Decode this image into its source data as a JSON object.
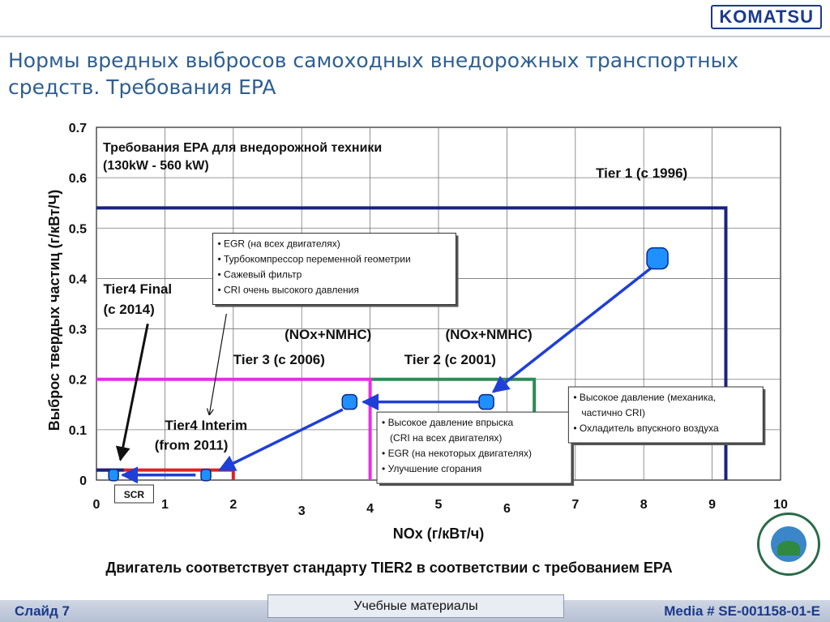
{
  "logo": {
    "text": "KOMATSU"
  },
  "title": "Нормы вредных выбросов самоходных внедорожных транспортных средств. Требования EPA",
  "chart_data": {
    "type": "line",
    "title": "Требования EPA для внедорожной техники",
    "subtitle": "(130kW - 560 kW)",
    "xlabel": "NOx (г/кВт/ч)",
    "ylabel": "Выброс твердых частиц (г/кВт/Ч)",
    "xlim": [
      0,
      10
    ],
    "ylim": [
      0,
      0.7
    ],
    "grid": true,
    "x_ticks": [
      "0",
      "1",
      "2",
      "3",
      "4",
      "5",
      "6",
      "7",
      "8",
      "9",
      "10"
    ],
    "y_ticks": [
      "0",
      "0.1",
      "0.2",
      "0.3",
      "0.4",
      "0.5",
      "0.6",
      "0.7"
    ],
    "series": [
      {
        "name": "Tier 1 (с 1996)",
        "color": "#1a237e",
        "points": [
          [
            0,
            0.54
          ],
          [
            9.2,
            0.54
          ],
          [
            9.2,
            0
          ]
        ]
      },
      {
        "name": "Tier 2 (с 2001)",
        "color": "#2e8b57",
        "points": [
          [
            4,
            0.2
          ],
          [
            6.4,
            0.2
          ],
          [
            6.4,
            0
          ]
        ]
      },
      {
        "name": "Tier 3 (с 2006)",
        "color": "#e62ee6",
        "points": [
          [
            0,
            0.2
          ],
          [
            4,
            0.2
          ],
          [
            4,
            0
          ]
        ]
      },
      {
        "name": "Tier4 Interim",
        "color": "#e02020",
        "points": [
          [
            0,
            0.02
          ],
          [
            2,
            0.02
          ],
          [
            2,
            0
          ]
        ]
      },
      {
        "name": "Tier4 Final",
        "color": "#1a237e",
        "points": [
          [
            0,
            0.02
          ],
          [
            0.4,
            0.02
          ]
        ]
      }
    ],
    "series_labels": [
      {
        "text": "Tier 1 (с 1996)",
        "x": 7.3,
        "y": 0.6
      },
      {
        "text": "(NOx+NMHC)",
        "x": 2.75,
        "y": 0.28
      },
      {
        "text": "Tier 3 (с 2006)",
        "x": 2.0,
        "y": 0.23
      },
      {
        "text": "(NOx+NMHC)",
        "x": 5.1,
        "y": 0.28
      },
      {
        "text": "Tier 2 (с 2001)",
        "x": 4.5,
        "y": 0.23
      },
      {
        "text": "Tier4 Final",
        "x": 0.1,
        "y": 0.37
      },
      {
        "text": "(с 2014)",
        "x": 0.1,
        "y": 0.33
      },
      {
        "text": "Tier4 Interim",
        "x": 1.0,
        "y": 0.1
      },
      {
        "text": "(from 2011)",
        "x": 0.85,
        "y": 0.06
      }
    ],
    "engine_points": [
      {
        "x": 8.2,
        "y": 0.44
      },
      {
        "x": 5.7,
        "y": 0.155
      },
      {
        "x": 3.7,
        "y": 0.155
      },
      {
        "x": 1.6,
        "y": 0.01
      },
      {
        "x": 0.25,
        "y": 0.01
      }
    ],
    "path_arrows": [
      {
        "from": [
          8.1,
          0.42
        ],
        "to": [
          5.8,
          0.175
        ]
      },
      {
        "from": [
          5.6,
          0.155
        ],
        "to": [
          3.9,
          0.155
        ]
      },
      {
        "from": [
          3.6,
          0.14
        ],
        "to": [
          1.8,
          0.02
        ]
      },
      {
        "from": [
          1.45,
          0.01
        ],
        "to": [
          0.38,
          0.01
        ]
      }
    ],
    "callout_arrows": [
      {
        "from": [
          0.75,
          0.31
        ],
        "to": [
          0.35,
          0.04
        ]
      },
      {
        "from": [
          1.9,
          0.33
        ],
        "to": [
          1.65,
          0.13
        ]
      }
    ],
    "notes": [
      {
        "x": 1.7,
        "y": 0.49,
        "items": [
          "• EGR (на всех двигателях)",
          "• Турбокомпрессор переменной геометрии",
          "• Сажевый фильтр",
          "• CRI очень высокого давления"
        ]
      },
      {
        "x": 4.1,
        "y": 0.135,
        "items": [
          "• Высокое давление впрыска",
          "(CRI на всех двигателях)",
          "• EGR (на некоторых двигателях)",
          "• Улучшение сгорания"
        ]
      },
      {
        "x": 6.9,
        "y": 0.185,
        "items": [
          "• Высокое давление (механика,",
          "частично CRI)",
          "• Охладитель впускного воздуха"
        ]
      }
    ],
    "scr_label": {
      "text": "SCR",
      "x": 0.55,
      "y": -0.02
    }
  },
  "conclusion": "Двигатель соответствует стандарту TIER2 в соответствии с требованием EPA",
  "footer": {
    "left": "Слайд 7",
    "center": "Учебные материалы",
    "right": "Media # SE-001158-01-E"
  }
}
